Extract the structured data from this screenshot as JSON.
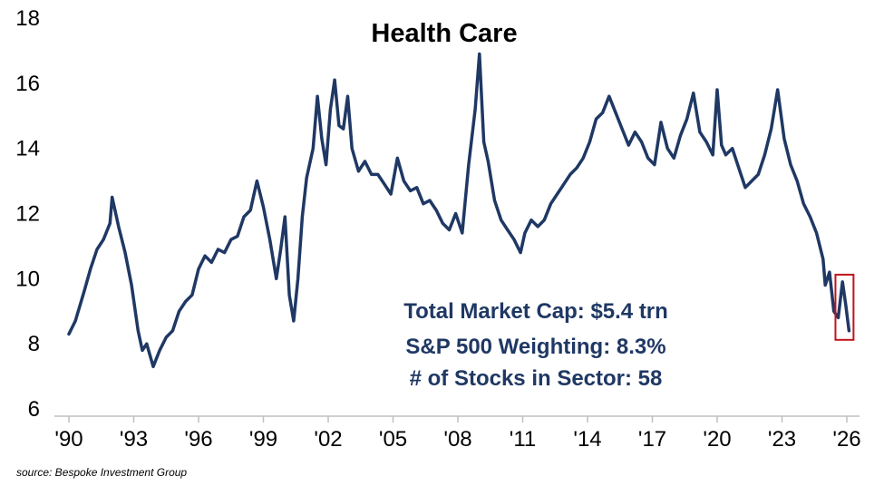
{
  "chart_data": {
    "type": "line",
    "title": "Health Care",
    "xlabel": "",
    "ylabel": "",
    "x_tick_labels": [
      "'90",
      "'93",
      "'96",
      "'99",
      "'02",
      "'05",
      "'08",
      "'11",
      "'14",
      "'17",
      "'20",
      "'23",
      "'26"
    ],
    "x_tick_years": [
      1990,
      1993,
      1996,
      1999,
      2002,
      2005,
      2008,
      2011,
      2014,
      2017,
      2020,
      2023,
      2026
    ],
    "y_tick_labels": [
      "6",
      "8",
      "10",
      "12",
      "14",
      "16",
      "18"
    ],
    "y_ticks": [
      6,
      8,
      10,
      12,
      14,
      16,
      18
    ],
    "xlim": [
      1990,
      2026
    ],
    "ylim": [
      6,
      18
    ],
    "grid": false,
    "line_color": "#1f3864",
    "highlight_color": "#c0141c",
    "highlight_year_range": [
      2025.6,
      2026.1
    ],
    "series": [
      {
        "x": [
          1990.0,
          1990.3,
          1990.7,
          1991.0,
          1991.3,
          1991.6,
          1991.9,
          1992.0,
          1992.3,
          1992.6,
          1992.9,
          1993.2,
          1993.4,
          1993.6,
          1993.9,
          1994.2,
          1994.5,
          1994.8,
          1995.1,
          1995.4,
          1995.7,
          1996.0,
          1996.3,
          1996.6,
          1996.9,
          1997.2,
          1997.5,
          1997.8,
          1998.1,
          1998.4,
          1998.7,
          1999.0,
          1999.3,
          1999.6,
          1999.8,
          2000.0,
          2000.2,
          2000.4,
          2000.6,
          2000.8,
          2001.0,
          2001.3,
          2001.5,
          2001.7,
          2001.9,
          2002.1,
          2002.3,
          2002.5,
          2002.7,
          2002.9,
          2003.1,
          2003.4,
          2003.7,
          2004.0,
          2004.3,
          2004.6,
          2004.9,
          2005.2,
          2005.5,
          2005.8,
          2006.1,
          2006.4,
          2006.7,
          2007.0,
          2007.3,
          2007.6,
          2007.9,
          2008.2,
          2008.5,
          2008.8,
          2009.0,
          2009.2,
          2009.4,
          2009.7,
          2010.0,
          2010.3,
          2010.6,
          2010.9,
          2011.1,
          2011.4,
          2011.7,
          2012.0,
          2012.3,
          2012.6,
          2012.9,
          2013.2,
          2013.5,
          2013.8,
          2014.1,
          2014.4,
          2014.7,
          2015.0,
          2015.3,
          2015.6,
          2015.9,
          2016.2,
          2016.5,
          2016.8,
          2017.1,
          2017.4,
          2017.7,
          2018.0,
          2018.3,
          2018.6,
          2018.9,
          2019.2,
          2019.5,
          2019.8,
          2020.0,
          2020.2,
          2020.4,
          2020.7,
          2021.0,
          2021.3,
          2021.6,
          2021.9,
          2022.2,
          2022.5,
          2022.8,
          2023.1,
          2023.4,
          2023.7,
          2024.0,
          2024.3,
          2024.6,
          2024.9,
          2025.0,
          2025.2,
          2025.4,
          2025.6,
          2025.8,
          2025.95,
          2026.1
        ],
        "values": [
          8.3,
          8.7,
          9.6,
          10.3,
          10.9,
          11.2,
          11.7,
          12.5,
          11.6,
          10.8,
          9.8,
          8.4,
          7.8,
          8.0,
          7.3,
          7.8,
          8.2,
          8.4,
          9.0,
          9.3,
          9.5,
          10.3,
          10.7,
          10.5,
          10.9,
          10.8,
          11.2,
          11.3,
          11.9,
          12.1,
          13.0,
          12.2,
          11.2,
          10.0,
          10.9,
          11.9,
          9.5,
          8.7,
          10.0,
          11.9,
          13.1,
          14.0,
          15.6,
          14.3,
          13.5,
          15.2,
          16.1,
          14.7,
          14.6,
          15.6,
          14.0,
          13.3,
          13.6,
          13.2,
          13.2,
          12.9,
          12.6,
          13.7,
          13.0,
          12.7,
          12.8,
          12.3,
          12.4,
          12.1,
          11.7,
          11.5,
          12.0,
          11.4,
          13.5,
          15.2,
          16.9,
          14.2,
          13.6,
          12.4,
          11.8,
          11.5,
          11.2,
          10.8,
          11.4,
          11.8,
          11.6,
          11.8,
          12.3,
          12.6,
          12.9,
          13.2,
          13.4,
          13.7,
          14.2,
          14.9,
          15.1,
          15.6,
          15.1,
          14.6,
          14.1,
          14.5,
          14.2,
          13.7,
          13.5,
          14.8,
          14.0,
          13.7,
          14.4,
          14.9,
          15.7,
          14.5,
          14.2,
          13.8,
          15.8,
          14.1,
          13.8,
          14.0,
          13.4,
          12.8,
          13.0,
          13.2,
          13.8,
          14.6,
          15.8,
          14.3,
          13.5,
          13.0,
          12.3,
          11.9,
          11.4,
          10.6,
          9.8,
          10.2,
          9.0,
          8.8,
          9.9,
          9.2,
          8.4
        ]
      }
    ]
  },
  "source_text": "source: Bespoke Investment Group",
  "annotations": {
    "market_cap": "Total Market Cap: $5.4 trn",
    "weighting": "S&P 500 Weighting: 8.3%",
    "stock_count": "# of Stocks in Sector: 58"
  }
}
